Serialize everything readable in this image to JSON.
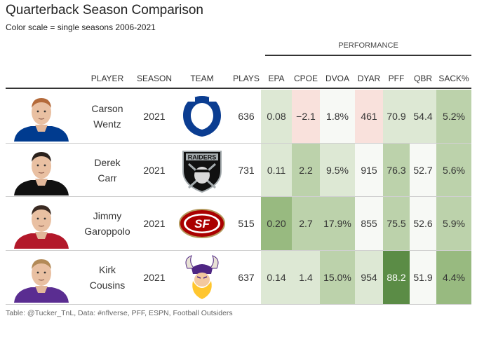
{
  "title": "Quarterback Season Comparison",
  "subtitle": "Color scale = single seasons 2006-2021",
  "spanner": "PERFORMANCE",
  "footer": "Table: @Tucker_TnL, Data: #nflverse, PFF, ESPN, Football Outsiders",
  "colors": {
    "very_low": "#f9e1dc",
    "neutral": "#f7f9f5",
    "light_green": "#dde8d4",
    "mid_green": "#bcd2ab",
    "dark_green": "#98ba80",
    "deep_green": "#5b8c46"
  },
  "chart_data": {
    "type": "table",
    "columns": [
      "PLAYER",
      "SEASON",
      "TEAM",
      "PLAYS",
      "EPA",
      "CPOE",
      "DVOA",
      "DYAR",
      "PFF",
      "QBR",
      "SACK%"
    ],
    "rows": [
      {
        "player_line1": "Carson",
        "player_line2": "Wentz",
        "season": "2021",
        "team_logo": "colts-logo",
        "plays": "636",
        "metrics": [
          {
            "key": "EPA",
            "text": "0.08",
            "shade": "light_green"
          },
          {
            "key": "CPOE",
            "text": "−2.1",
            "shade": "very_low"
          },
          {
            "key": "DVOA",
            "text": "1.8%",
            "shade": "neutral"
          },
          {
            "key": "DYAR",
            "text": "461",
            "shade": "very_low"
          },
          {
            "key": "PFF",
            "text": "70.9",
            "shade": "light_green"
          },
          {
            "key": "QBR",
            "text": "54.4",
            "shade": "light_green"
          },
          {
            "key": "SACK%",
            "text": "5.2%",
            "shade": "mid_green"
          }
        ]
      },
      {
        "player_line1": "Derek",
        "player_line2": "Carr",
        "season": "2021",
        "team_logo": "raiders-logo",
        "plays": "731",
        "metrics": [
          {
            "key": "EPA",
            "text": "0.11",
            "shade": "light_green"
          },
          {
            "key": "CPOE",
            "text": "2.2",
            "shade": "mid_green"
          },
          {
            "key": "DVOA",
            "text": "9.5%",
            "shade": "light_green"
          },
          {
            "key": "DYAR",
            "text": "915",
            "shade": "neutral"
          },
          {
            "key": "PFF",
            "text": "76.3",
            "shade": "mid_green"
          },
          {
            "key": "QBR",
            "text": "52.7",
            "shade": "neutral"
          },
          {
            "key": "SACK%",
            "text": "5.6%",
            "shade": "mid_green"
          }
        ]
      },
      {
        "player_line1": "Jimmy",
        "player_line2": "Garoppolo",
        "season": "2021",
        "team_logo": "49ers-logo",
        "plays": "515",
        "metrics": [
          {
            "key": "EPA",
            "text": "0.20",
            "shade": "dark_green"
          },
          {
            "key": "CPOE",
            "text": "2.7",
            "shade": "mid_green"
          },
          {
            "key": "DVOA",
            "text": "17.9%",
            "shade": "mid_green"
          },
          {
            "key": "DYAR",
            "text": "855",
            "shade": "neutral"
          },
          {
            "key": "PFF",
            "text": "75.5",
            "shade": "mid_green"
          },
          {
            "key": "QBR",
            "text": "52.6",
            "shade": "neutral"
          },
          {
            "key": "SACK%",
            "text": "5.9%",
            "shade": "mid_green"
          }
        ]
      },
      {
        "player_line1": "Kirk",
        "player_line2": "Cousins",
        "season": "2021",
        "team_logo": "vikings-logo",
        "plays": "637",
        "metrics": [
          {
            "key": "EPA",
            "text": "0.14",
            "shade": "light_green"
          },
          {
            "key": "CPOE",
            "text": "1.4",
            "shade": "light_green"
          },
          {
            "key": "DVOA",
            "text": "15.0%",
            "shade": "mid_green"
          },
          {
            "key": "DYAR",
            "text": "954",
            "shade": "light_green"
          },
          {
            "key": "PFF",
            "text": "88.2",
            "shade": "deep_green"
          },
          {
            "key": "QBR",
            "text": "51.9",
            "shade": "neutral"
          },
          {
            "key": "SACK%",
            "text": "4.4%",
            "shade": "dark_green"
          }
        ]
      }
    ]
  }
}
